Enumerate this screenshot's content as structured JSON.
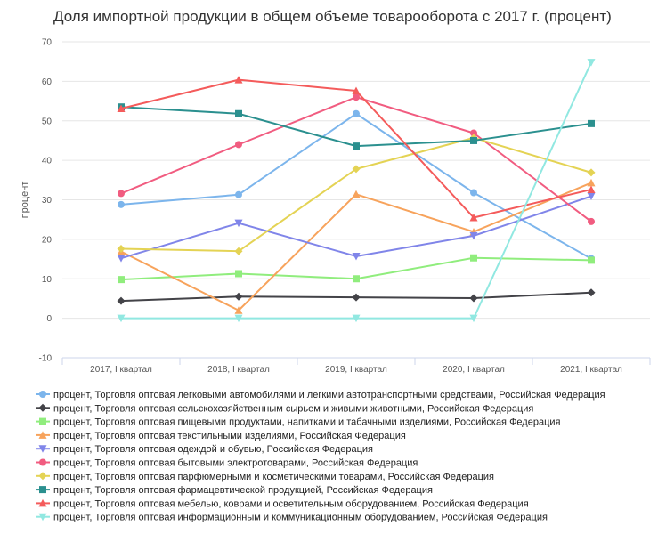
{
  "chart_data": {
    "type": "line",
    "title": "Доля импортной продукции в общем объеме товарооборота с 2017 г. (процент)",
    "ylabel": "процент",
    "xlabel": "",
    "ylim": [
      -10,
      70
    ],
    "yticks": [
      -10,
      0,
      10,
      20,
      30,
      40,
      50,
      60,
      70
    ],
    "grid": "horizontal",
    "legend": "bottom",
    "categories": [
      "2017, I квартал",
      "2018, I квартал",
      "2019, I квартал",
      "2020, I квартал",
      "2021, I квартал"
    ],
    "series": [
      {
        "name": "процент, Торговля оптовая легковыми автомобилями и легкими автотранспортными средствами, Российская Федерация",
        "color": "#7cb5ec",
        "marker": "circle",
        "values": [
          28.8,
          31.3,
          51.8,
          31.8,
          15.1
        ]
      },
      {
        "name": "процент, Торговля оптовая сельскохозяйственным сырьем и живыми животными, Российская Федерация",
        "color": "#434348",
        "marker": "diamond",
        "values": [
          4.4,
          5.5,
          5.3,
          5.1,
          6.5
        ]
      },
      {
        "name": "процент, Торговля оптовая пищевыми продуктами, напитками и табачными изделиями, Российская Федерация",
        "color": "#90ed7d",
        "marker": "square",
        "values": [
          9.8,
          11.3,
          10.0,
          15.3,
          14.7
        ]
      },
      {
        "name": "процент, Торговля оптовая текстильными изделиями, Российская Федерация",
        "color": "#f7a35c",
        "marker": "triangle",
        "values": [
          16.9,
          2.0,
          31.4,
          21.9,
          34.3
        ]
      },
      {
        "name": "процент, Торговля оптовая одеждой и обувью, Российская Федерация",
        "color": "#8085e9",
        "marker": "triangle-down",
        "values": [
          15.2,
          24.1,
          15.7,
          20.9,
          30.9
        ]
      },
      {
        "name": "процент, Торговля оптовая бытовыми электротоварами, Российская Федерация",
        "color": "#f15c80",
        "marker": "circle",
        "values": [
          31.6,
          44.0,
          56.0,
          46.9,
          24.5
        ]
      },
      {
        "name": "процент, Торговля оптовая парфюмерными и косметическими товарами, Российская Федерация",
        "color": "#e4d354",
        "marker": "diamond",
        "values": [
          17.6,
          17.0,
          37.8,
          45.7,
          36.9
        ]
      },
      {
        "name": "процент, Торговля оптовая фармацевтической продукцией, Российская Федерация",
        "color": "#2b908f",
        "marker": "square",
        "values": [
          53.5,
          51.8,
          43.6,
          45.0,
          49.3
        ]
      },
      {
        "name": "процент, Торговля оптовая мебелью, коврами и осветительным оборудованием, Российская Федерация",
        "color": "#f45b5b",
        "marker": "triangle",
        "values": [
          53.1,
          60.4,
          57.6,
          25.5,
          32.6
        ]
      },
      {
        "name": "процент, Торговля оптовая информационным и коммуникационным оборудованием, Российская Федерация",
        "color": "#91e8e1",
        "marker": "triangle-down",
        "values": [
          0,
          0,
          0,
          0,
          64.8
        ]
      }
    ]
  }
}
